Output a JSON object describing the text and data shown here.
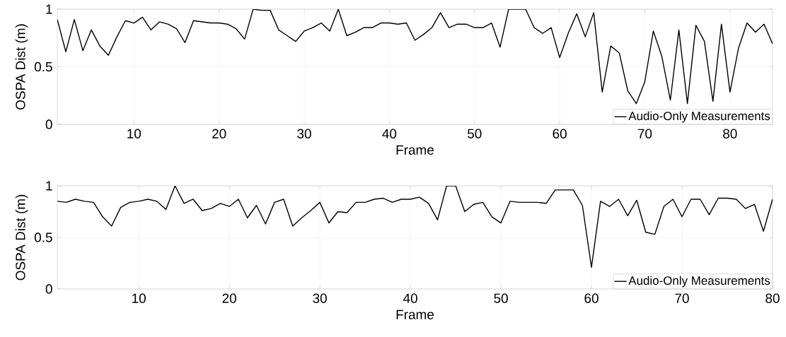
{
  "chart_data": [
    {
      "type": "line",
      "xlabel": "Frame",
      "ylabel": "OSPA Dist (m)",
      "xlim": [
        1,
        85
      ],
      "ylim": [
        0,
        1
      ],
      "xticks": [
        10,
        20,
        30,
        40,
        50,
        60,
        70,
        80
      ],
      "yticks": [
        0,
        0.5,
        1
      ],
      "grid": true,
      "legend": "bottom right",
      "x": [
        1,
        2,
        3,
        4,
        5,
        6,
        7,
        8,
        9,
        10,
        11,
        12,
        13,
        14,
        15,
        16,
        17,
        18,
        19,
        20,
        21,
        22,
        23,
        24,
        25,
        26,
        27,
        28,
        29,
        30,
        31,
        32,
        33,
        34,
        35,
        36,
        37,
        38,
        39,
        40,
        41,
        42,
        43,
        44,
        45,
        46,
        47,
        48,
        49,
        50,
        51,
        52,
        53,
        54,
        55,
        56,
        57,
        58,
        59,
        60,
        61,
        62,
        63,
        64,
        65,
        66,
        67,
        68,
        69,
        70,
        71,
        72,
        73,
        74,
        75,
        76,
        77,
        78,
        79,
        80,
        81,
        82,
        83,
        84,
        85
      ],
      "series": [
        {
          "name": "Audio-Only Measurements",
          "color": "#000000",
          "values": [
            0.91,
            0.63,
            0.91,
            0.64,
            0.82,
            0.68,
            0.6,
            0.76,
            0.9,
            0.88,
            0.93,
            0.82,
            0.89,
            0.87,
            0.83,
            0.71,
            0.9,
            0.89,
            0.88,
            0.88,
            0.87,
            0.83,
            0.74,
            1.0,
            0.99,
            0.99,
            0.82,
            0.77,
            0.72,
            0.81,
            0.84,
            0.88,
            0.81,
            1.0,
            0.77,
            0.8,
            0.84,
            0.84,
            0.88,
            0.88,
            0.87,
            0.88,
            0.73,
            0.78,
            0.84,
            0.97,
            0.84,
            0.87,
            0.87,
            0.84,
            0.84,
            0.88,
            0.67,
            1.0,
            1.0,
            1.0,
            0.84,
            0.79,
            0.84,
            0.58,
            0.79,
            0.96,
            0.76,
            0.97,
            0.28,
            0.68,
            0.62,
            0.29,
            0.18,
            0.37,
            0.81,
            0.59,
            0.21,
            0.82,
            0.18,
            0.86,
            0.72,
            0.2,
            0.87,
            0.28,
            0.66,
            0.88,
            0.8,
            0.87,
            0.7
          ]
        }
      ]
    },
    {
      "type": "line",
      "xlabel": "Frame",
      "ylabel": "OSPA Dist (m)",
      "xlim": [
        1,
        80
      ],
      "ylim": [
        0,
        1
      ],
      "xticks": [
        10,
        20,
        30,
        40,
        50,
        60,
        70,
        80
      ],
      "yticks": [
        0,
        0.5,
        1
      ],
      "grid": true,
      "legend": "bottom right",
      "x": [
        1,
        2,
        3,
        4,
        5,
        6,
        7,
        8,
        9,
        10,
        11,
        12,
        13,
        14,
        15,
        16,
        17,
        18,
        19,
        20,
        21,
        22,
        23,
        24,
        25,
        26,
        27,
        28,
        29,
        30,
        31,
        32,
        33,
        34,
        35,
        36,
        37,
        38,
        39,
        40,
        41,
        42,
        43,
        44,
        45,
        46,
        47,
        48,
        49,
        50,
        51,
        52,
        53,
        54,
        55,
        56,
        57,
        58,
        59,
        60,
        61,
        62,
        63,
        64,
        65,
        66,
        67,
        68,
        69,
        70,
        71,
        72,
        73,
        74,
        75,
        76,
        77,
        78,
        79,
        80
      ],
      "series": [
        {
          "name": "Audio-Only Measurements",
          "color": "#000000",
          "values": [
            0.85,
            0.84,
            0.87,
            0.85,
            0.84,
            0.7,
            0.61,
            0.79,
            0.84,
            0.85,
            0.87,
            0.85,
            0.77,
            1.0,
            0.83,
            0.87,
            0.76,
            0.78,
            0.83,
            0.8,
            0.87,
            0.69,
            0.81,
            0.63,
            0.84,
            0.87,
            0.61,
            0.69,
            0.76,
            0.84,
            0.64,
            0.75,
            0.74,
            0.84,
            0.84,
            0.87,
            0.88,
            0.84,
            0.87,
            0.87,
            0.89,
            0.83,
            0.67,
            1.0,
            1.0,
            0.75,
            0.82,
            0.84,
            0.7,
            0.64,
            0.85,
            0.84,
            0.84,
            0.84,
            0.83,
            0.96,
            0.96,
            0.96,
            0.81,
            0.21,
            0.85,
            0.8,
            0.87,
            0.71,
            0.86,
            0.55,
            0.53,
            0.8,
            0.87,
            0.7,
            0.87,
            0.87,
            0.72,
            0.88,
            0.88,
            0.87,
            0.78,
            0.82,
            0.56,
            0.87
          ]
        }
      ]
    }
  ]
}
